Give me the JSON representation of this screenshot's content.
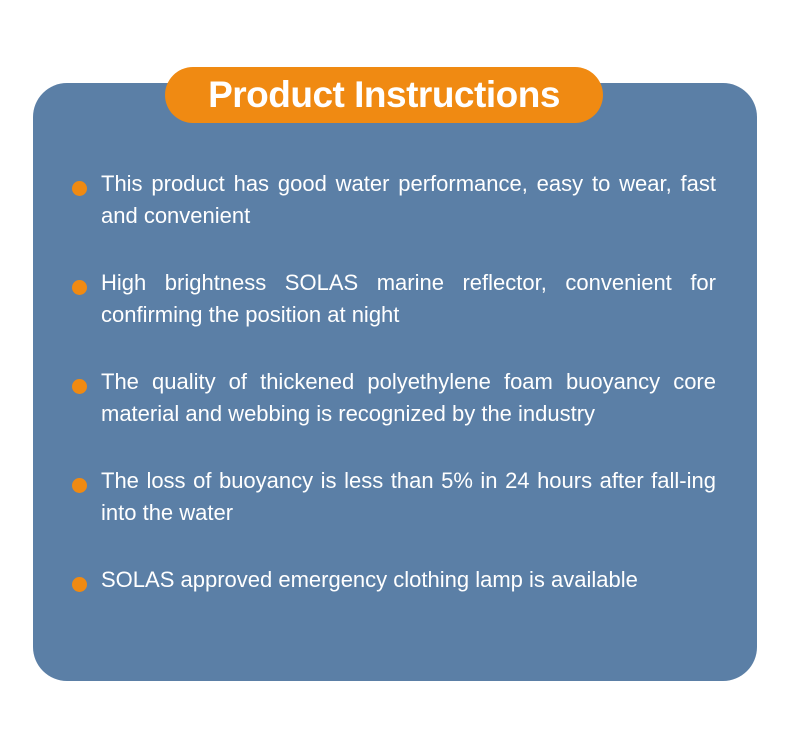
{
  "title": "Product Instructions",
  "items": [
    {
      "text": "This product has good water performance, easy to wear, fast and convenient"
    },
    {
      "text": "High brightness SOLAS marine reflector, convenient for confirming the position at night"
    },
    {
      "text": "The quality of thickened polyethylene foam buoyancy core material and webbing is recognized by the industry"
    },
    {
      "text": "The loss of buoyancy is less than 5% in 24 hours after fall-ing into the water"
    },
    {
      "text": "SOLAS approved emergency clothing lamp is available"
    }
  ],
  "colors": {
    "panel": "#5b7fa6",
    "accent": "#f08a12",
    "text": "#ffffff"
  }
}
